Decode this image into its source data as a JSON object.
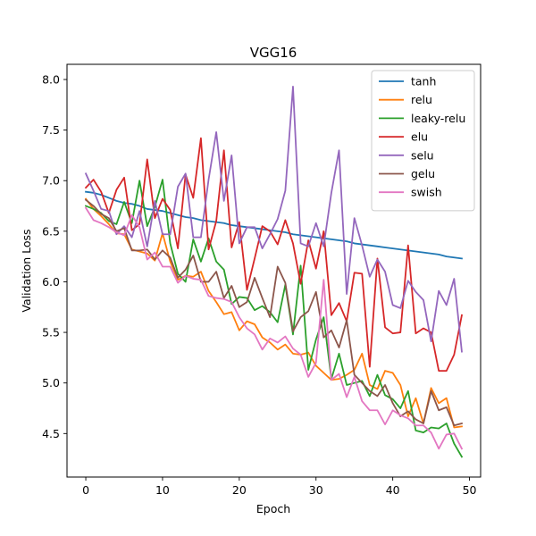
{
  "chart_data": {
    "type": "line",
    "title": "VGG16",
    "xlabel": "Epoch",
    "ylabel": "Validation Loss",
    "xlim": [
      -2.45,
      51.45
    ],
    "ylim": [
      4.07,
      8.15
    ],
    "xticks": [
      "0",
      "10",
      "20",
      "30",
      "40",
      "50"
    ],
    "xtick_values": [
      0,
      10,
      20,
      30,
      40,
      50
    ],
    "yticks": [
      "4.5",
      "5.0",
      "5.5",
      "6.0",
      "6.5",
      "7.0",
      "7.5",
      "8.0"
    ],
    "ytick_values": [
      4.5,
      5.0,
      5.5,
      6.0,
      6.5,
      7.0,
      7.5,
      8.0
    ],
    "grid": false,
    "legend_position": "top-right",
    "x": [
      0,
      1,
      2,
      3,
      4,
      5,
      6,
      7,
      8,
      9,
      10,
      11,
      12,
      13,
      14,
      15,
      16,
      17,
      18,
      19,
      20,
      21,
      22,
      23,
      24,
      25,
      26,
      27,
      28,
      29,
      30,
      31,
      32,
      33,
      34,
      35,
      36,
      37,
      38,
      39,
      40,
      41,
      42,
      43,
      44,
      45,
      46,
      47,
      48,
      49
    ],
    "series": [
      {
        "name": "tanh",
        "color": "#1f77b4",
        "values": [
          6.89,
          6.88,
          6.86,
          6.83,
          6.8,
          6.78,
          6.77,
          6.75,
          6.72,
          6.71,
          6.7,
          6.68,
          6.66,
          6.64,
          6.63,
          6.61,
          6.6,
          6.59,
          6.58,
          6.56,
          6.55,
          6.54,
          6.53,
          6.52,
          6.51,
          6.5,
          6.49,
          6.47,
          6.46,
          6.45,
          6.44,
          6.43,
          6.42,
          6.41,
          6.4,
          6.38,
          6.37,
          6.36,
          6.35,
          6.34,
          6.33,
          6.32,
          6.31,
          6.3,
          6.29,
          6.28,
          6.27,
          6.25,
          6.24,
          6.23
        ]
      },
      {
        "name": "relu",
        "color": "#ff7f0e",
        "values": [
          6.82,
          6.72,
          6.65,
          6.57,
          6.48,
          6.47,
          6.32,
          6.3,
          6.28,
          6.21,
          6.48,
          6.2,
          6.02,
          6.06,
          6.05,
          6.1,
          5.91,
          5.8,
          5.68,
          5.7,
          5.52,
          5.61,
          5.58,
          5.45,
          5.4,
          5.33,
          5.38,
          5.29,
          5.28,
          5.3,
          5.17,
          5.1,
          5.03,
          5.04,
          5.08,
          5.13,
          5.29,
          4.98,
          4.94,
          5.12,
          5.1,
          4.98,
          4.67,
          4.85,
          4.6,
          4.95,
          4.8,
          4.85,
          4.56,
          4.57
        ]
      },
      {
        "name": "leaky-relu",
        "color": "#2ca02c",
        "values": [
          6.75,
          6.72,
          6.68,
          6.6,
          6.57,
          6.79,
          6.58,
          7.0,
          6.55,
          6.74,
          7.01,
          6.38,
          6.08,
          6.0,
          6.42,
          6.2,
          6.43,
          6.2,
          6.12,
          5.78,
          5.85,
          5.84,
          5.72,
          5.76,
          5.7,
          5.6,
          5.97,
          5.48,
          6.16,
          5.13,
          5.43,
          5.65,
          5.04,
          5.29,
          4.98,
          5.0,
          5.02,
          4.87,
          5.08,
          4.88,
          4.84,
          4.75,
          4.92,
          4.53,
          4.51,
          4.56,
          4.55,
          4.6,
          4.4,
          4.27
        ]
      },
      {
        "name": "elu",
        "color": "#d62728",
        "values": [
          6.93,
          7.01,
          6.89,
          6.68,
          6.91,
          7.03,
          6.51,
          6.57,
          7.21,
          6.63,
          6.82,
          6.71,
          6.33,
          7.06,
          6.83,
          7.42,
          6.32,
          6.6,
          7.3,
          6.34,
          6.59,
          5.92,
          6.23,
          6.55,
          6.5,
          6.37,
          6.61,
          6.38,
          5.98,
          6.41,
          6.13,
          6.5,
          5.67,
          5.79,
          5.61,
          6.09,
          6.08,
          5.16,
          6.23,
          5.55,
          5.49,
          5.5,
          6.36,
          5.49,
          5.54,
          5.5,
          5.12,
          5.12,
          5.28,
          5.67
        ]
      },
      {
        "name": "selu",
        "color": "#9467bd",
        "values": [
          7.07,
          6.9,
          6.72,
          6.7,
          6.47,
          6.55,
          6.44,
          6.7,
          6.35,
          6.8,
          6.47,
          6.47,
          6.94,
          7.07,
          6.44,
          6.44,
          7.01,
          7.48,
          6.8,
          7.25,
          6.38,
          6.54,
          6.54,
          6.33,
          6.47,
          6.62,
          6.9,
          7.93,
          6.38,
          6.35,
          6.58,
          6.35,
          6.88,
          7.3,
          5.88,
          6.63,
          6.36,
          6.05,
          6.22,
          6.1,
          5.77,
          5.74,
          6.01,
          5.9,
          5.82,
          5.41,
          5.91,
          5.77,
          6.03,
          5.31
        ]
      },
      {
        "name": "gelu",
        "color": "#8c564b",
        "values": [
          6.81,
          6.75,
          6.67,
          6.63,
          6.5,
          6.53,
          6.31,
          6.31,
          6.32,
          6.22,
          6.31,
          6.24,
          6.04,
          6.12,
          6.26,
          6.0,
          6.0,
          6.1,
          5.84,
          5.96,
          5.75,
          5.8,
          6.04,
          5.84,
          5.65,
          6.15,
          5.99,
          5.51,
          5.65,
          5.71,
          5.9,
          5.45,
          5.52,
          5.35,
          5.62,
          5.08,
          5.0,
          4.92,
          4.87,
          4.98,
          4.8,
          4.67,
          4.72,
          4.64,
          4.6,
          4.92,
          4.73,
          4.76,
          4.58,
          4.6
        ]
      },
      {
        "name": "swish",
        "color": "#e377c2",
        "values": [
          6.73,
          6.61,
          6.58,
          6.54,
          6.49,
          6.46,
          6.66,
          6.54,
          6.22,
          6.29,
          6.15,
          6.15,
          5.99,
          6.06,
          6.03,
          6.02,
          5.86,
          5.84,
          5.83,
          5.8,
          5.65,
          5.54,
          5.48,
          5.33,
          5.44,
          5.4,
          5.46,
          5.34,
          5.28,
          5.06,
          5.2,
          6.02,
          5.03,
          5.09,
          4.86,
          5.06,
          4.82,
          4.73,
          4.73,
          4.59,
          4.73,
          4.68,
          4.65,
          4.58,
          4.58,
          4.51,
          4.35,
          4.49,
          4.5,
          4.35
        ]
      }
    ]
  }
}
